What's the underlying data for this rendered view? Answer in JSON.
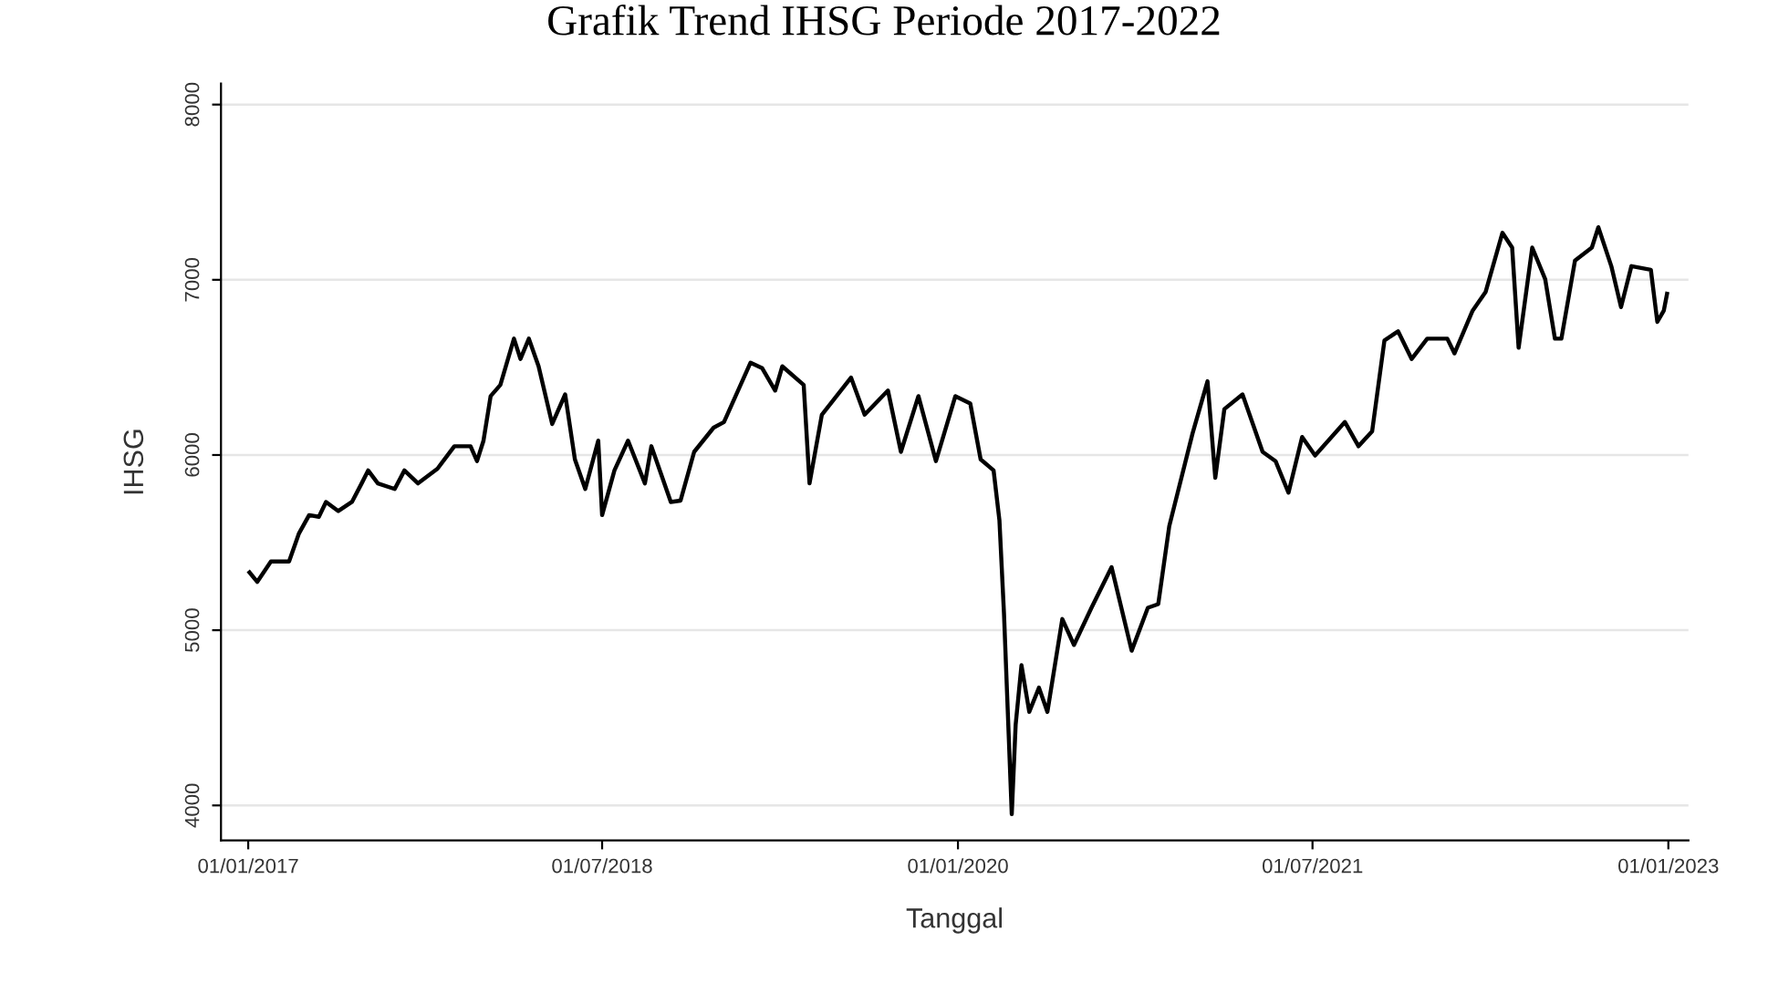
{
  "chart_data": {
    "type": "line",
    "title": "Grafik Trend IHSG Periode 2017-2022",
    "xlabel": "Tanggal",
    "ylabel": "IHSG",
    "x": [
      "2017-01-03",
      "2017-01-15",
      "2017-02-05",
      "2017-03-05",
      "2017-03-20",
      "2017-04-05",
      "2017-04-20",
      "2017-05-01",
      "2017-05-20",
      "2017-06-10",
      "2017-06-25",
      "2017-07-05",
      "2017-07-20",
      "2017-08-15",
      "2017-08-30",
      "2017-09-20",
      "2017-10-20",
      "2017-11-15",
      "2017-12-10",
      "2017-12-20",
      "2017-12-30",
      "2018-01-10",
      "2018-01-25",
      "2018-02-15",
      "2018-02-25",
      "2018-03-10",
      "2018-03-25",
      "2018-04-15",
      "2018-05-05",
      "2018-05-20",
      "2018-06-05",
      "2018-06-25",
      "2018-07-01",
      "2018-07-20",
      "2018-08-10",
      "2018-09-05",
      "2018-09-15",
      "2018-10-15",
      "2018-10-30",
      "2018-11-20",
      "2018-12-20",
      "2019-01-05",
      "2019-02-15",
      "2019-03-05",
      "2019-03-25",
      "2019-04-05",
      "2019-05-08",
      "2019-05-17",
      "2019-06-05",
      "2019-07-20",
      "2019-08-10",
      "2019-09-15",
      "2019-10-05",
      "2019-11-01",
      "2019-11-28",
      "2019-12-28",
      "2020-01-20",
      "2020-02-05",
      "2020-02-25",
      "2020-03-05",
      "2020-03-12",
      "2020-03-24",
      "2020-03-30",
      "2020-04-08",
      "2020-04-20",
      "2020-05-05",
      "2020-05-18",
      "2020-06-10",
      "2020-06-28",
      "2020-07-25",
      "2020-08-25",
      "2020-09-25",
      "2020-10-20",
      "2020-11-05",
      "2020-11-22",
      "2020-12-28",
      "2021-01-20",
      "2021-02-01",
      "2021-02-15",
      "2021-03-15",
      "2021-04-15",
      "2021-05-05",
      "2021-05-25",
      "2021-06-15",
      "2021-07-05",
      "2021-08-20",
      "2021-09-10",
      "2021-10-01",
      "2021-10-20",
      "2021-11-10",
      "2021-12-01",
      "2021-12-25",
      "2022-01-25",
      "2022-02-05",
      "2022-03-05",
      "2022-03-25",
      "2022-04-20",
      "2022-05-05",
      "2022-05-15",
      "2022-06-05",
      "2022-06-25",
      "2022-07-10",
      "2022-07-20",
      "2022-08-10",
      "2022-09-05",
      "2022-09-15",
      "2022-10-05",
      "2022-10-20",
      "2022-11-05",
      "2022-12-05",
      "2022-12-15",
      "2022-12-25",
      "2022-12-30"
    ],
    "series": [
      {
        "color": "#000000",
        "values": [
          5330,
          5276,
          5392,
          5392,
          5550,
          5657,
          5647,
          5732,
          5680,
          5732,
          5838,
          5912,
          5838,
          5806,
          5912,
          5838,
          5922,
          6050,
          6050,
          5965,
          6082,
          6336,
          6400,
          6664,
          6548,
          6664,
          6506,
          6177,
          6346,
          5975,
          5806,
          6082,
          5657,
          5912,
          6082,
          5838,
          6050,
          5732,
          5740,
          6018,
          6156,
          6188,
          6527,
          6495,
          6368,
          6506,
          6400,
          5838,
          6230,
          6442,
          6230,
          6368,
          6018,
          6336,
          5965,
          6336,
          6294,
          5975,
          5912,
          5626,
          5096,
          3950,
          4460,
          4800,
          4534,
          4672,
          4534,
          5064,
          4916,
          5128,
          5360,
          4883,
          5128,
          5149,
          5594,
          6124,
          6421,
          5870,
          6262,
          6346,
          6018,
          5965,
          5785,
          6103,
          5997,
          6188,
          6050,
          6135,
          6654,
          6706,
          6548,
          6664,
          6664,
          6580,
          6824,
          6930,
          7268,
          7184,
          6612,
          7184,
          7004,
          6664,
          6664,
          7110,
          7184,
          7300,
          7078,
          6844,
          7078,
          7057,
          6760,
          6824,
          6920
        ]
      }
    ],
    "xlim": [
      "2016-11-20",
      "2023-02-01"
    ],
    "xticks": [
      {
        "value": "2017-01-01",
        "label": "01/01/2017"
      },
      {
        "value": "2018-07-01",
        "label": "01/07/2018"
      },
      {
        "value": "2020-01-01",
        "label": "01/01/2020"
      },
      {
        "value": "2021-07-01",
        "label": "01/07/2021"
      },
      {
        "value": "2023-01-01",
        "label": "01/01/2023"
      }
    ],
    "ylim": [
      3800,
      8120
    ],
    "yticks": [
      4000,
      5000,
      6000,
      7000,
      8000
    ],
    "grid": "y",
    "line_style": "solid",
    "marker": "none"
  }
}
